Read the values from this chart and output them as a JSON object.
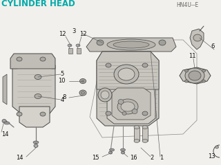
{
  "title": "CYLINDER HEAD",
  "subtitle_code": "HN4U--E",
  "bg_color": "#f2f0ec",
  "line_color": "#444444",
  "text_color": "#111111",
  "cyan_text": "#00aaaa",
  "title_fontsize": 8.5,
  "code_fontsize": 5.5,
  "label_fontsize": 6.0,
  "gray_part": "#c8c5be",
  "gray_dark": "#a0a09a",
  "gray_light": "#dddad4",
  "gray_mid": "#b8b5af"
}
